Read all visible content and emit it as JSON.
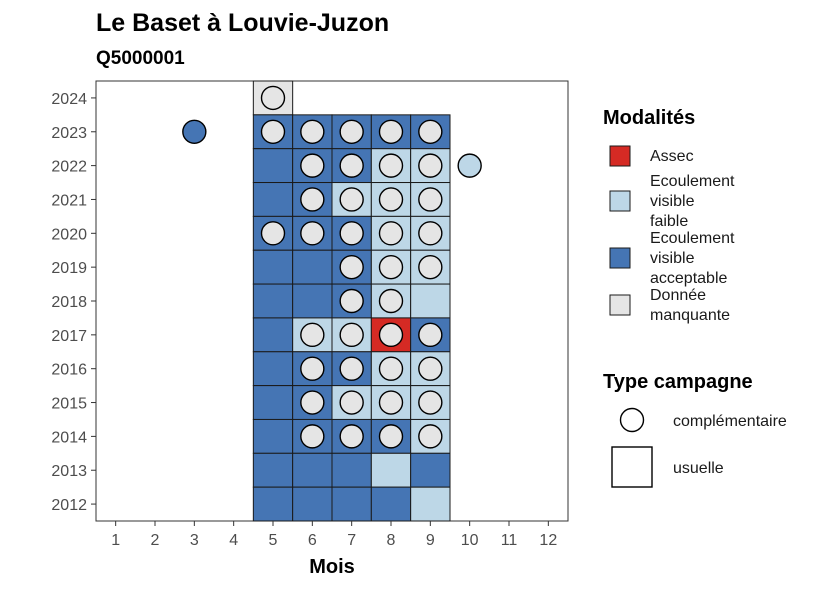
{
  "chart_data": {
    "type": "heatmap",
    "title": "Le Baset à Louvie-Juzon",
    "subtitle": "Q5000001",
    "xlabel": "Mois",
    "ylabel": "",
    "x_ticks": [
      1,
      2,
      3,
      4,
      5,
      6,
      7,
      8,
      9,
      10,
      11,
      12
    ],
    "y_ticks": [
      2012,
      2013,
      2014,
      2015,
      2016,
      2017,
      2018,
      2019,
      2020,
      2021,
      2022,
      2023,
      2024
    ],
    "xlim": [
      0.5,
      12.5
    ],
    "ylim": [
      2011.5,
      2024.5
    ],
    "grid": false,
    "legend_placement": "right",
    "legend_modalites": {
      "title": "Modalités",
      "items": [
        {
          "key": "assec",
          "lines": [
            "Assec"
          ],
          "color": "#d52a24"
        },
        {
          "key": "faible",
          "lines": [
            "Ecoulement",
            "visible",
            "faible"
          ],
          "color": "#bdd7e7"
        },
        {
          "key": "acceptable",
          "lines": [
            "Ecoulement",
            "visible",
            "acceptable"
          ],
          "color": "#4575b4"
        },
        {
          "key": "manquante",
          "lines": [
            "Donnée",
            "manquante"
          ],
          "color": "#e5e5e5"
        }
      ]
    },
    "legend_campagne": {
      "title": "Type campagne",
      "items": [
        {
          "key": "complementaire",
          "label": "complémentaire",
          "shape": "circle"
        },
        {
          "key": "usuelle",
          "label": "usuelle",
          "shape": "square"
        }
      ]
    },
    "squares": [
      {
        "year": 2024,
        "month": 5,
        "modalite": "manquante"
      },
      {
        "year": 2023,
        "month": 5,
        "modalite": "acceptable"
      },
      {
        "year": 2023,
        "month": 6,
        "modalite": "acceptable"
      },
      {
        "year": 2023,
        "month": 7,
        "modalite": "acceptable"
      },
      {
        "year": 2023,
        "month": 8,
        "modalite": "acceptable"
      },
      {
        "year": 2023,
        "month": 9,
        "modalite": "acceptable"
      },
      {
        "year": 2022,
        "month": 5,
        "modalite": "acceptable"
      },
      {
        "year": 2022,
        "month": 6,
        "modalite": "acceptable"
      },
      {
        "year": 2022,
        "month": 7,
        "modalite": "acceptable"
      },
      {
        "year": 2022,
        "month": 8,
        "modalite": "faible"
      },
      {
        "year": 2022,
        "month": 9,
        "modalite": "faible"
      },
      {
        "year": 2021,
        "month": 5,
        "modalite": "acceptable"
      },
      {
        "year": 2021,
        "month": 6,
        "modalite": "acceptable"
      },
      {
        "year": 2021,
        "month": 7,
        "modalite": "faible"
      },
      {
        "year": 2021,
        "month": 8,
        "modalite": "faible"
      },
      {
        "year": 2021,
        "month": 9,
        "modalite": "faible"
      },
      {
        "year": 2020,
        "month": 5,
        "modalite": "acceptable"
      },
      {
        "year": 2020,
        "month": 6,
        "modalite": "acceptable"
      },
      {
        "year": 2020,
        "month": 7,
        "modalite": "acceptable"
      },
      {
        "year": 2020,
        "month": 8,
        "modalite": "faible"
      },
      {
        "year": 2020,
        "month": 9,
        "modalite": "faible"
      },
      {
        "year": 2019,
        "month": 5,
        "modalite": "acceptable"
      },
      {
        "year": 2019,
        "month": 6,
        "modalite": "acceptable"
      },
      {
        "year": 2019,
        "month": 7,
        "modalite": "acceptable"
      },
      {
        "year": 2019,
        "month": 8,
        "modalite": "faible"
      },
      {
        "year": 2019,
        "month": 9,
        "modalite": "faible"
      },
      {
        "year": 2018,
        "month": 5,
        "modalite": "acceptable"
      },
      {
        "year": 2018,
        "month": 6,
        "modalite": "acceptable"
      },
      {
        "year": 2018,
        "month": 7,
        "modalite": "acceptable"
      },
      {
        "year": 2018,
        "month": 8,
        "modalite": "faible"
      },
      {
        "year": 2018,
        "month": 9,
        "modalite": "faible"
      },
      {
        "year": 2017,
        "month": 5,
        "modalite": "acceptable"
      },
      {
        "year": 2017,
        "month": 6,
        "modalite": "faible"
      },
      {
        "year": 2017,
        "month": 7,
        "modalite": "faible"
      },
      {
        "year": 2017,
        "month": 8,
        "modalite": "assec"
      },
      {
        "year": 2017,
        "month": 9,
        "modalite": "acceptable"
      },
      {
        "year": 2016,
        "month": 5,
        "modalite": "acceptable"
      },
      {
        "year": 2016,
        "month": 6,
        "modalite": "acceptable"
      },
      {
        "year": 2016,
        "month": 7,
        "modalite": "acceptable"
      },
      {
        "year": 2016,
        "month": 8,
        "modalite": "faible"
      },
      {
        "year": 2016,
        "month": 9,
        "modalite": "faible"
      },
      {
        "year": 2015,
        "month": 5,
        "modalite": "acceptable"
      },
      {
        "year": 2015,
        "month": 6,
        "modalite": "acceptable"
      },
      {
        "year": 2015,
        "month": 7,
        "modalite": "faible"
      },
      {
        "year": 2015,
        "month": 8,
        "modalite": "faible"
      },
      {
        "year": 2015,
        "month": 9,
        "modalite": "faible"
      },
      {
        "year": 2014,
        "month": 5,
        "modalite": "acceptable"
      },
      {
        "year": 2014,
        "month": 6,
        "modalite": "acceptable"
      },
      {
        "year": 2014,
        "month": 7,
        "modalite": "acceptable"
      },
      {
        "year": 2014,
        "month": 8,
        "modalite": "acceptable"
      },
      {
        "year": 2014,
        "month": 9,
        "modalite": "faible"
      },
      {
        "year": 2013,
        "month": 5,
        "modalite": "acceptable"
      },
      {
        "year": 2013,
        "month": 6,
        "modalite": "acceptable"
      },
      {
        "year": 2013,
        "month": 7,
        "modalite": "acceptable"
      },
      {
        "year": 2013,
        "month": 8,
        "modalite": "faible"
      },
      {
        "year": 2013,
        "month": 9,
        "modalite": "acceptable"
      },
      {
        "year": 2012,
        "month": 5,
        "modalite": "acceptable"
      },
      {
        "year": 2012,
        "month": 6,
        "modalite": "acceptable"
      },
      {
        "year": 2012,
        "month": 7,
        "modalite": "acceptable"
      },
      {
        "year": 2012,
        "month": 8,
        "modalite": "acceptable"
      },
      {
        "year": 2012,
        "month": 9,
        "modalite": "faible"
      }
    ],
    "circles": [
      {
        "year": 2024,
        "month": 5,
        "modalite": "manquante"
      },
      {
        "year": 2023,
        "month": 3,
        "modalite": "acceptable"
      },
      {
        "year": 2023,
        "month": 5,
        "modalite": "manquante"
      },
      {
        "year": 2023,
        "month": 6,
        "modalite": "manquante"
      },
      {
        "year": 2023,
        "month": 7,
        "modalite": "manquante"
      },
      {
        "year": 2023,
        "month": 8,
        "modalite": "manquante"
      },
      {
        "year": 2023,
        "month": 9,
        "modalite": "manquante"
      },
      {
        "year": 2022,
        "month": 6,
        "modalite": "manquante"
      },
      {
        "year": 2022,
        "month": 7,
        "modalite": "manquante"
      },
      {
        "year": 2022,
        "month": 8,
        "modalite": "manquante"
      },
      {
        "year": 2022,
        "month": 9,
        "modalite": "manquante"
      },
      {
        "year": 2022,
        "month": 10,
        "modalite": "faible"
      },
      {
        "year": 2021,
        "month": 6,
        "modalite": "manquante"
      },
      {
        "year": 2021,
        "month": 7,
        "modalite": "manquante"
      },
      {
        "year": 2021,
        "month": 8,
        "modalite": "manquante"
      },
      {
        "year": 2021,
        "month": 9,
        "modalite": "manquante"
      },
      {
        "year": 2020,
        "month": 5,
        "modalite": "manquante"
      },
      {
        "year": 2020,
        "month": 6,
        "modalite": "manquante"
      },
      {
        "year": 2020,
        "month": 7,
        "modalite": "manquante"
      },
      {
        "year": 2020,
        "month": 8,
        "modalite": "manquante"
      },
      {
        "year": 2020,
        "month": 9,
        "modalite": "manquante"
      },
      {
        "year": 2019,
        "month": 7,
        "modalite": "manquante"
      },
      {
        "year": 2019,
        "month": 8,
        "modalite": "manquante"
      },
      {
        "year": 2019,
        "month": 9,
        "modalite": "manquante"
      },
      {
        "year": 2018,
        "month": 7,
        "modalite": "manquante"
      },
      {
        "year": 2018,
        "month": 8,
        "modalite": "manquante"
      },
      {
        "year": 2017,
        "month": 6,
        "modalite": "manquante"
      },
      {
        "year": 2017,
        "month": 7,
        "modalite": "manquante"
      },
      {
        "year": 2017,
        "month": 8,
        "modalite": "manquante"
      },
      {
        "year": 2017,
        "month": 9,
        "modalite": "manquante"
      },
      {
        "year": 2016,
        "month": 6,
        "modalite": "manquante"
      },
      {
        "year": 2016,
        "month": 7,
        "modalite": "manquante"
      },
      {
        "year": 2016,
        "month": 8,
        "modalite": "manquante"
      },
      {
        "year": 2016,
        "month": 9,
        "modalite": "manquante"
      },
      {
        "year": 2015,
        "month": 6,
        "modalite": "manquante"
      },
      {
        "year": 2015,
        "month": 7,
        "modalite": "manquante"
      },
      {
        "year": 2015,
        "month": 8,
        "modalite": "manquante"
      },
      {
        "year": 2015,
        "month": 9,
        "modalite": "manquante"
      },
      {
        "year": 2014,
        "month": 6,
        "modalite": "manquante"
      },
      {
        "year": 2014,
        "month": 7,
        "modalite": "manquante"
      },
      {
        "year": 2014,
        "month": 8,
        "modalite": "manquante"
      },
      {
        "year": 2014,
        "month": 9,
        "modalite": "manquante"
      }
    ]
  }
}
